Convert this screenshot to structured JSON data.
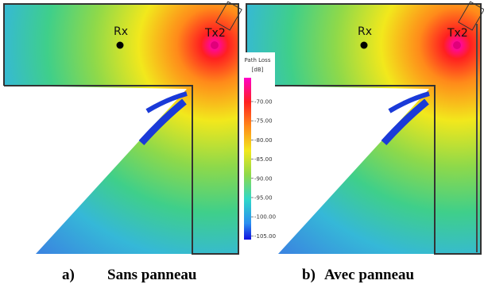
{
  "panels": [
    {
      "rx": "Rx",
      "tx": "Tx2",
      "caption_letter": "a)",
      "caption": "Sans panneau"
    },
    {
      "rx": "Rx",
      "tx": "Tx2",
      "caption_letter": "b)",
      "caption": "Avec panneau"
    }
  ],
  "colorbar": {
    "title": "Path Loss",
    "unit": "[dB]",
    "ticks": [
      "-70.00",
      "-75.00",
      "-80.00",
      "-85.00",
      "-90.00",
      "-95.00",
      "-100.00",
      "-105.00"
    ]
  }
}
